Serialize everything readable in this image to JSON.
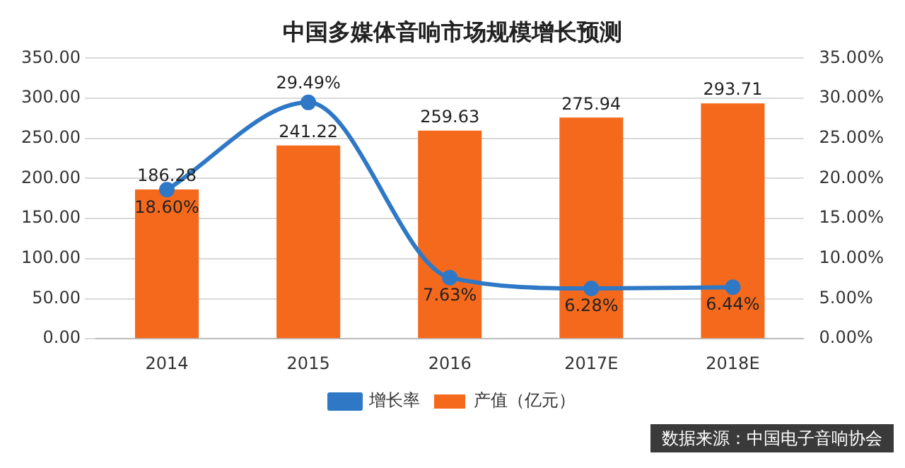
{
  "chart_data": {
    "type": "bar",
    "title": "中国多媒体音响市场规模增长预测",
    "categories": [
      "2014",
      "2015",
      "2016",
      "2017E",
      "2018E"
    ],
    "series": [
      {
        "name": "产值（亿元）",
        "color": "#f5691d",
        "values": [
          186.28,
          241.22,
          259.63,
          275.94,
          293.71
        ],
        "value_labels": [
          "186.28",
          "241.22",
          "259.63",
          "275.94",
          "293.71"
        ]
      },
      {
        "name": "增长率",
        "type": "line",
        "axis": "y2",
        "color": "#2e78c6",
        "marker": "circle",
        "values": [
          18.6,
          29.49,
          7.63,
          6.28,
          6.44
        ],
        "value_labels": [
          "18.60%",
          "29.49%",
          "7.63%",
          "6.28%",
          "6.44%"
        ]
      }
    ],
    "ylim": [
      0,
      350
    ],
    "yticks": [
      {
        "value": 0,
        "label": "0.00"
      },
      {
        "value": 50,
        "label": "50.00"
      },
      {
        "value": 100,
        "label": "100.00"
      },
      {
        "value": 150,
        "label": "150.00"
      },
      {
        "value": 200,
        "label": "200.00"
      },
      {
        "value": 250,
        "label": "250.00"
      },
      {
        "value": 300,
        "label": "300.00"
      },
      {
        "value": 350,
        "label": "350.00"
      }
    ],
    "y2lim": [
      0,
      35
    ],
    "y2ticks": [
      {
        "value": 0,
        "label": "0.00%"
      },
      {
        "value": 5,
        "label": "5.00%"
      },
      {
        "value": 10,
        "label": "10.00%"
      },
      {
        "value": 15,
        "label": "15.00%"
      },
      {
        "value": 20,
        "label": "20.00%"
      },
      {
        "value": 25,
        "label": "25.00%"
      },
      {
        "value": 30,
        "label": "30.00%"
      },
      {
        "value": 35,
        "label": "35.00%"
      }
    ],
    "grid": "y",
    "legend": "bottom",
    "annotations": [
      "数据来源：中国电子音响协会"
    ]
  }
}
